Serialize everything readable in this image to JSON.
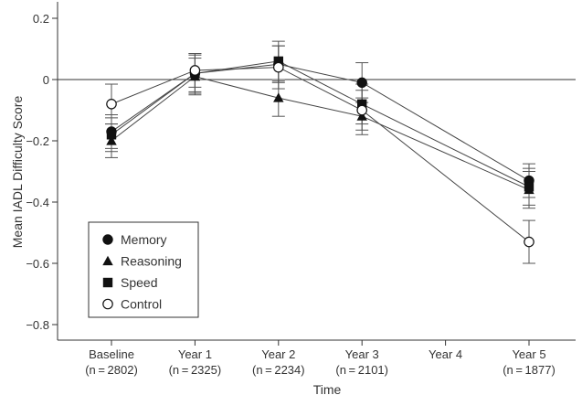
{
  "chart_data": {
    "type": "line",
    "title": "",
    "xlabel": "Time",
    "ylabel": "Mean IADL Difficulty Score",
    "ylim": [
      -0.85,
      0.2
    ],
    "yticks": [
      0.2,
      0,
      -0.2,
      -0.4,
      -0.6,
      -0.8
    ],
    "ytick_labels": [
      "0.2",
      "0",
      "−0.2",
      "−0.4",
      "−0.6",
      "−0.8"
    ],
    "categories": [
      "Baseline",
      "Year 1",
      "Year 2",
      "Year 3",
      "Year 4",
      "Year 5"
    ],
    "category_n": [
      "(n = 2802)",
      "(n = 2325)",
      "(n = 2234)",
      "(n = 2101)",
      "",
      "(n = 1877)"
    ],
    "x": [
      0,
      1,
      2,
      3,
      4,
      5
    ],
    "grid": false,
    "reference_line": 0,
    "legend_position": "bottom-left",
    "series": [
      {
        "name": "Memory",
        "marker": "circle-filled",
        "x": [
          0,
          1,
          2,
          3,
          5
        ],
        "values": [
          -0.17,
          0.02,
          0.05,
          -0.01,
          -0.33
        ],
        "errors": [
          0.055,
          0.06,
          0.06,
          0.065,
          0.055
        ]
      },
      {
        "name": "Reasoning",
        "marker": "triangle-filled",
        "x": [
          0,
          1,
          2,
          3,
          5
        ],
        "values": [
          -0.2,
          0.01,
          -0.06,
          -0.12,
          -0.36
        ],
        "errors": [
          0.055,
          0.06,
          0.06,
          0.06,
          0.06
        ]
      },
      {
        "name": "Speed",
        "marker": "square-filled",
        "x": [
          0,
          1,
          2,
          3,
          5
        ],
        "values": [
          -0.18,
          0.02,
          0.06,
          -0.08,
          -0.35
        ],
        "errors": [
          0.055,
          0.065,
          0.065,
          0.065,
          0.06
        ]
      },
      {
        "name": "Control",
        "marker": "circle-open",
        "x": [
          0,
          1,
          2,
          3,
          5
        ],
        "values": [
          -0.08,
          0.03,
          0.04,
          -0.1,
          -0.53
        ],
        "errors": [
          0.065,
          0.055,
          0.07,
          0.065,
          0.07
        ]
      }
    ]
  }
}
